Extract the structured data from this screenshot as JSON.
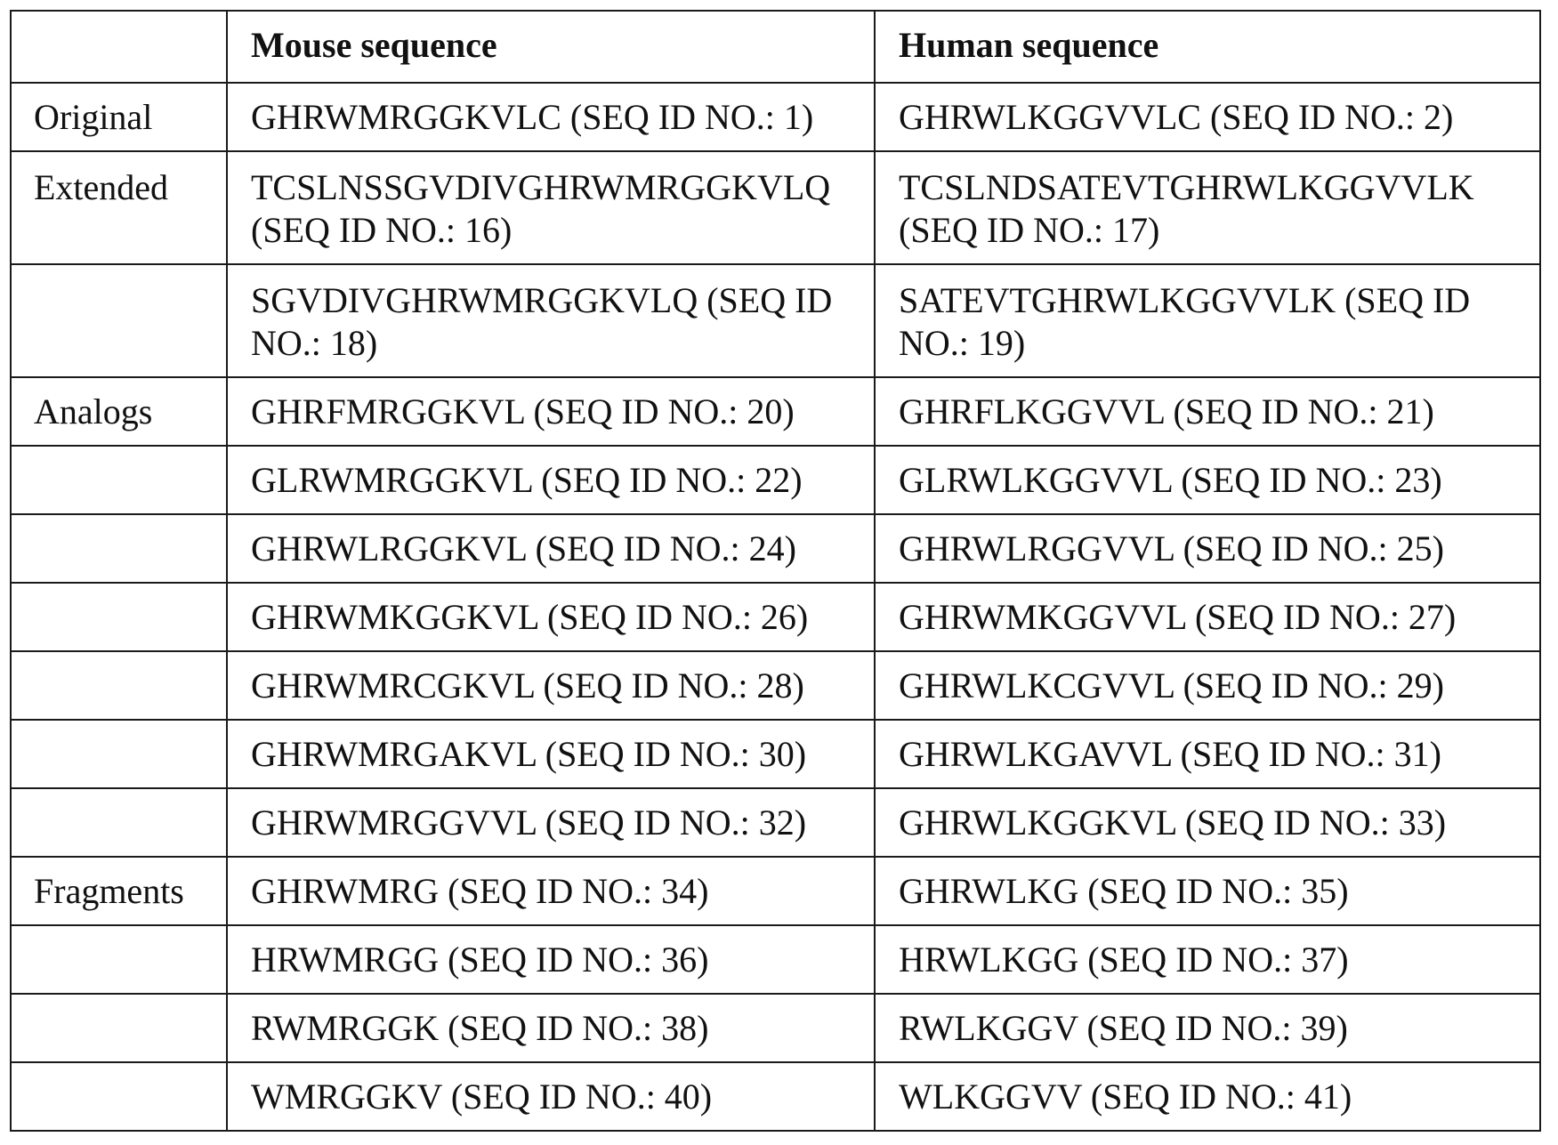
{
  "table": {
    "headers": [
      "",
      "Mouse sequence",
      "Human sequence"
    ],
    "rows": [
      {
        "group": "Original",
        "mouse": "GHRWMRGGKVLC (SEQ ID NO.: 1)",
        "human": "GHRWLKGGVVLC (SEQ ID NO.: 2)"
      },
      {
        "group": "Extended",
        "mouse": "TCSLNSSGVDIVGHRWMRGGKVLQ (SEQ ID NO.: 16)",
        "human": "TCSLNDSATEVTGHRWLKGGVVLK (SEQ ID NO.: 17)"
      },
      {
        "group": "",
        "mouse": "SGVDIVGHRWMRGGKVLQ (SEQ ID NO.: 18)",
        "human": "SATEVTGHRWLKGGVVLK (SEQ ID NO.: 19)"
      },
      {
        "group": "Analogs",
        "mouse": "GHRFMRGGKVL (SEQ ID NO.: 20)",
        "human": "GHRFLKGGVVL (SEQ ID NO.: 21)"
      },
      {
        "group": "",
        "mouse": "GLRWMRGGKVL (SEQ ID NO.: 22)",
        "human": "GLRWLKGGVVL (SEQ ID NO.: 23)"
      },
      {
        "group": "",
        "mouse": "GHRWLRGGKVL (SEQ ID NO.: 24)",
        "human": "GHRWLRGGVVL (SEQ ID NO.: 25)"
      },
      {
        "group": "",
        "mouse": "GHRWMKGGKVL (SEQ ID NO.: 26)",
        "human": "GHRWMKGGVVL (SEQ ID NO.: 27)"
      },
      {
        "group": "",
        "mouse": "GHRWMRCGKVL (SEQ ID NO.: 28)",
        "human": "GHRWLKCGVVL (SEQ ID NO.: 29)"
      },
      {
        "group": "",
        "mouse": "GHRWMRGAKVL (SEQ ID NO.: 30)",
        "human": "GHRWLKGAVVL (SEQ ID NO.: 31)"
      },
      {
        "group": "",
        "mouse": "GHRWMRGGVVL (SEQ ID NO.: 32)",
        "human": "GHRWLKGGKVL (SEQ ID NO.: 33)"
      },
      {
        "group": "Fragments",
        "mouse": "GHRWMRG (SEQ ID NO.: 34)",
        "human": "GHRWLKG (SEQ ID NO.: 35)"
      },
      {
        "group": "",
        "mouse": "HRWMRGG (SEQ ID NO.: 36)",
        "human": "HRWLKGG (SEQ ID NO.: 37)"
      },
      {
        "group": "",
        "mouse": "RWMRGGK (SEQ ID NO.: 38)",
        "human": "RWLKGGV (SEQ ID NO.: 39)"
      },
      {
        "group": "",
        "mouse": "WMRGGKV (SEQ ID NO.: 40)",
        "human": "WLKGGVV (SEQ ID NO.: 41)"
      }
    ]
  }
}
